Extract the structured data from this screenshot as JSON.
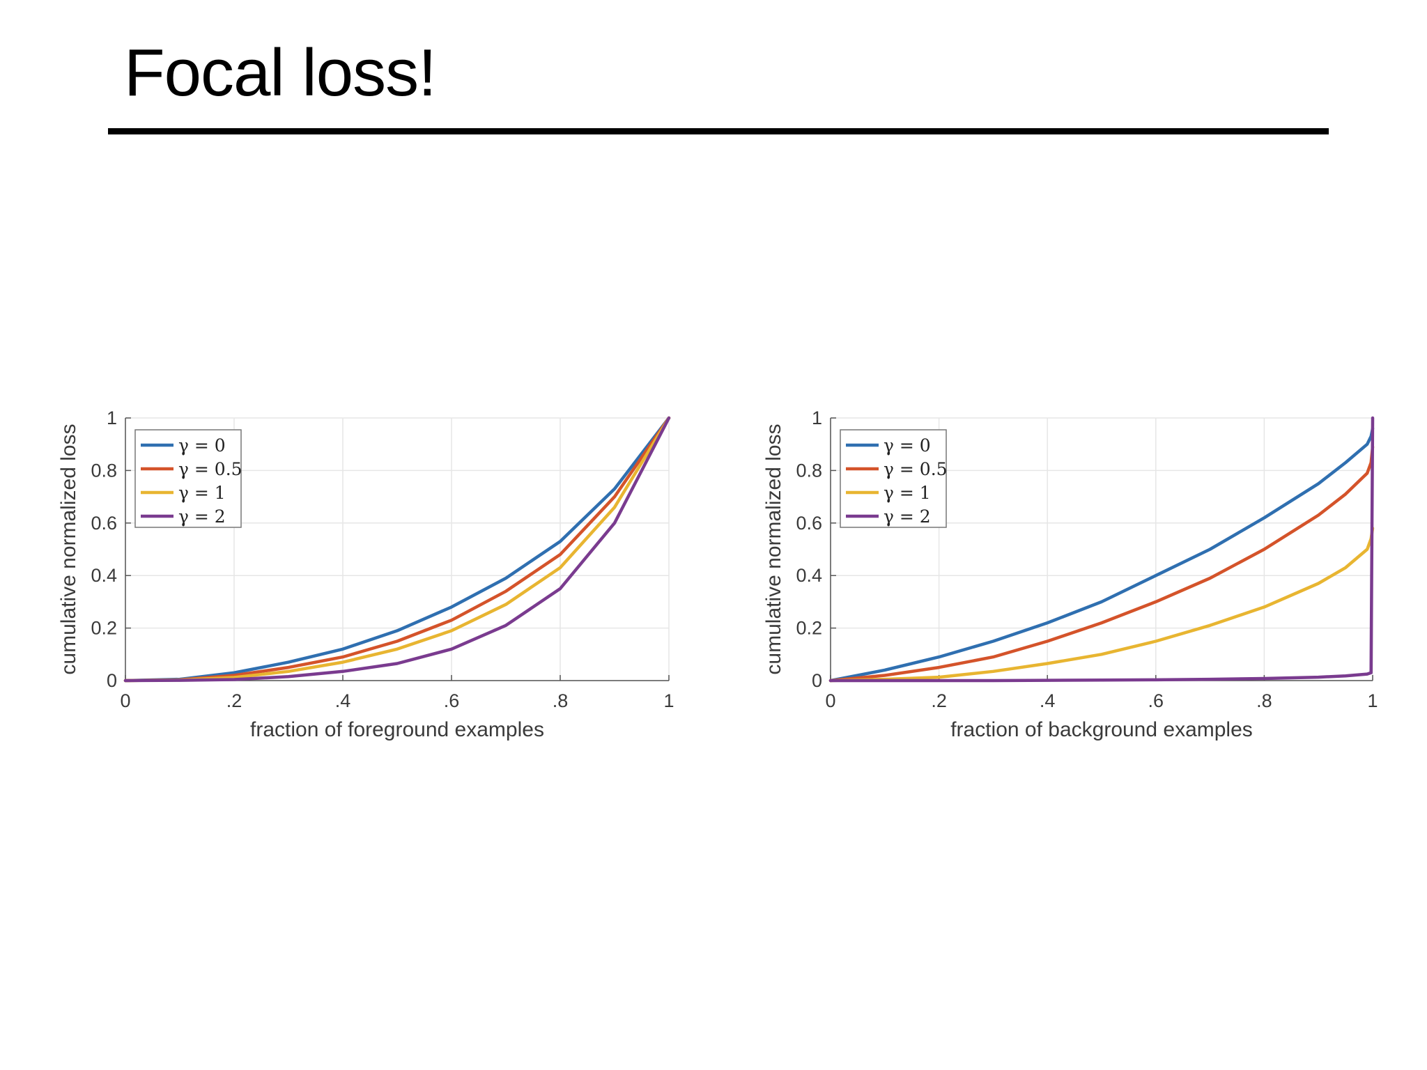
{
  "slide": {
    "title": "Focal loss!"
  },
  "chart_data": [
    {
      "type": "line",
      "xlabel": "fraction of foreground examples",
      "ylabel": "cumulative normalized loss",
      "xlim": [
        0,
        1
      ],
      "ylim": [
        0,
        1
      ],
      "xticks": [
        "0",
        ".2",
        ".4",
        ".6",
        ".8",
        "1"
      ],
      "yticks": [
        "0",
        "0.2",
        "0.4",
        "0.6",
        "0.8",
        "1"
      ],
      "grid": true,
      "legend_position": "top-left",
      "x": [
        0,
        0.1,
        0.2,
        0.3,
        0.4,
        0.5,
        0.6,
        0.7,
        0.8,
        0.9,
        1
      ],
      "series": [
        {
          "name": "γ = 0",
          "color": "#2f6fb0",
          "values": [
            0,
            0.005,
            0.03,
            0.07,
            0.12,
            0.19,
            0.28,
            0.39,
            0.53,
            0.73,
            1
          ]
        },
        {
          "name": "γ = 0.5",
          "color": "#d4532a",
          "values": [
            0,
            0.003,
            0.02,
            0.05,
            0.09,
            0.15,
            0.23,
            0.34,
            0.48,
            0.7,
            1
          ]
        },
        {
          "name": "γ = 1",
          "color": "#e8b531",
          "values": [
            0,
            0.002,
            0.012,
            0.035,
            0.07,
            0.12,
            0.19,
            0.29,
            0.43,
            0.66,
            1
          ]
        },
        {
          "name": "γ = 2",
          "color": "#7a3b8f",
          "values": [
            0,
            0.001,
            0.004,
            0.015,
            0.035,
            0.065,
            0.12,
            0.21,
            0.35,
            0.6,
            1
          ]
        }
      ]
    },
    {
      "type": "line",
      "xlabel": "fraction of background examples",
      "ylabel": "cumulative normalized loss",
      "xlim": [
        0,
        1
      ],
      "ylim": [
        0,
        1
      ],
      "xticks": [
        "0",
        ".2",
        ".4",
        ".6",
        ".8",
        "1"
      ],
      "yticks": [
        "0",
        "0.2",
        "0.4",
        "0.6",
        "0.8",
        "1"
      ],
      "grid": true,
      "legend_position": "top-left",
      "x": [
        0,
        0.1,
        0.2,
        0.3,
        0.4,
        0.5,
        0.6,
        0.7,
        0.8,
        0.9,
        0.95,
        0.99,
        0.997,
        1
      ],
      "series": [
        {
          "name": "γ = 0",
          "color": "#2f6fb0",
          "values": [
            0,
            0.04,
            0.09,
            0.15,
            0.22,
            0.3,
            0.4,
            0.5,
            0.62,
            0.75,
            0.83,
            0.9,
            0.93,
            0.96
          ]
        },
        {
          "name": "γ = 0.5",
          "color": "#d4532a",
          "values": [
            0,
            0.02,
            0.05,
            0.09,
            0.15,
            0.22,
            0.3,
            0.39,
            0.5,
            0.63,
            0.71,
            0.79,
            0.83,
            0.89
          ]
        },
        {
          "name": "γ = 1",
          "color": "#e8b531",
          "values": [
            0,
            0.005,
            0.013,
            0.035,
            0.065,
            0.1,
            0.15,
            0.21,
            0.28,
            0.37,
            0.43,
            0.5,
            0.54,
            0.58
          ]
        },
        {
          "name": "γ = 2",
          "color": "#7a3b8f",
          "values": [
            0,
            0,
            0,
            0,
            0.001,
            0.002,
            0.003,
            0.005,
            0.008,
            0.013,
            0.018,
            0.025,
            0.03,
            1
          ]
        }
      ]
    }
  ]
}
